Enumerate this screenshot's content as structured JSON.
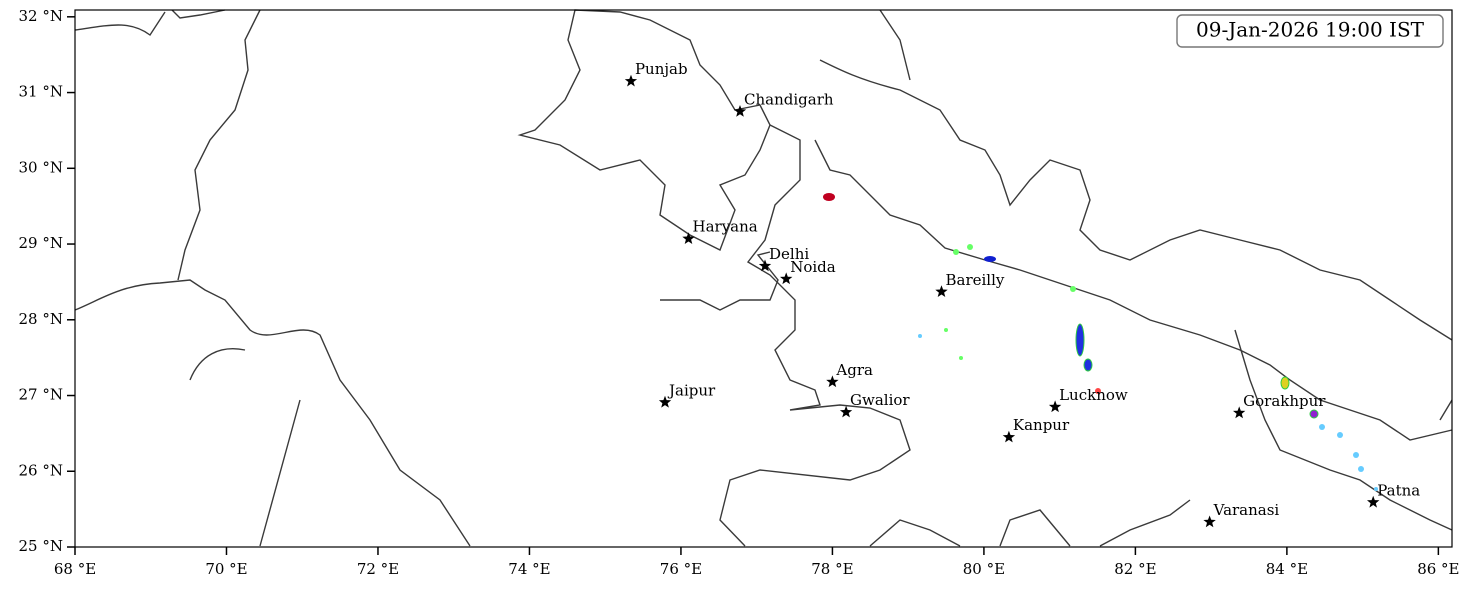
{
  "title": "09-Jan-2026 19:00 IST",
  "xlim": [
    68,
    86.18
  ],
  "ylim": [
    25,
    32.09
  ],
  "xticks": [
    {
      "value": 68,
      "label": "68 °E"
    },
    {
      "value": 70,
      "label": "70 °E"
    },
    {
      "value": 72,
      "label": "72 °E"
    },
    {
      "value": 74,
      "label": "74 °E"
    },
    {
      "value": 76,
      "label": "76 °E"
    },
    {
      "value": 78,
      "label": "78 °E"
    },
    {
      "value": 80,
      "label": "80 °E"
    },
    {
      "value": 82,
      "label": "82 °E"
    },
    {
      "value": 84,
      "label": "84 °E"
    },
    {
      "value": 86,
      "label": "86 °E"
    }
  ],
  "yticks": [
    {
      "value": 25,
      "label": "25 °N"
    },
    {
      "value": 26,
      "label": "26 °N"
    },
    {
      "value": 27,
      "label": "27 °N"
    },
    {
      "value": 28,
      "label": "28 °N"
    },
    {
      "value": 29,
      "label": "29 °N"
    },
    {
      "value": 30,
      "label": "30 °N"
    },
    {
      "value": 31,
      "label": "31 °N"
    },
    {
      "value": 32,
      "label": "32 °N"
    }
  ],
  "cities": [
    {
      "name": "Punjab",
      "lon": 75.34,
      "lat": 31.15
    },
    {
      "name": "Chandigarh",
      "lon": 76.78,
      "lat": 30.75
    },
    {
      "name": "Haryana",
      "lon": 76.1,
      "lat": 29.07
    },
    {
      "name": "Delhi",
      "lon": 77.11,
      "lat": 28.71
    },
    {
      "name": "Noida",
      "lon": 77.39,
      "lat": 28.54
    },
    {
      "name": "Bareilly",
      "lon": 79.44,
      "lat": 28.37
    },
    {
      "name": "Agra",
      "lon": 78.0,
      "lat": 27.18
    },
    {
      "name": "Jaipur",
      "lon": 75.79,
      "lat": 26.91
    },
    {
      "name": "Gwalior",
      "lon": 78.18,
      "lat": 26.78
    },
    {
      "name": "Lucknow",
      "lon": 80.94,
      "lat": 26.85
    },
    {
      "name": "Kanpur",
      "lon": 80.33,
      "lat": 26.45
    },
    {
      "name": "Gorakhpur",
      "lon": 83.37,
      "lat": 26.77
    },
    {
      "name": "Patna",
      "lon": 85.14,
      "lat": 25.59
    },
    {
      "name": "Varanasi",
      "lon": 82.98,
      "lat": 25.33
    }
  ]
}
